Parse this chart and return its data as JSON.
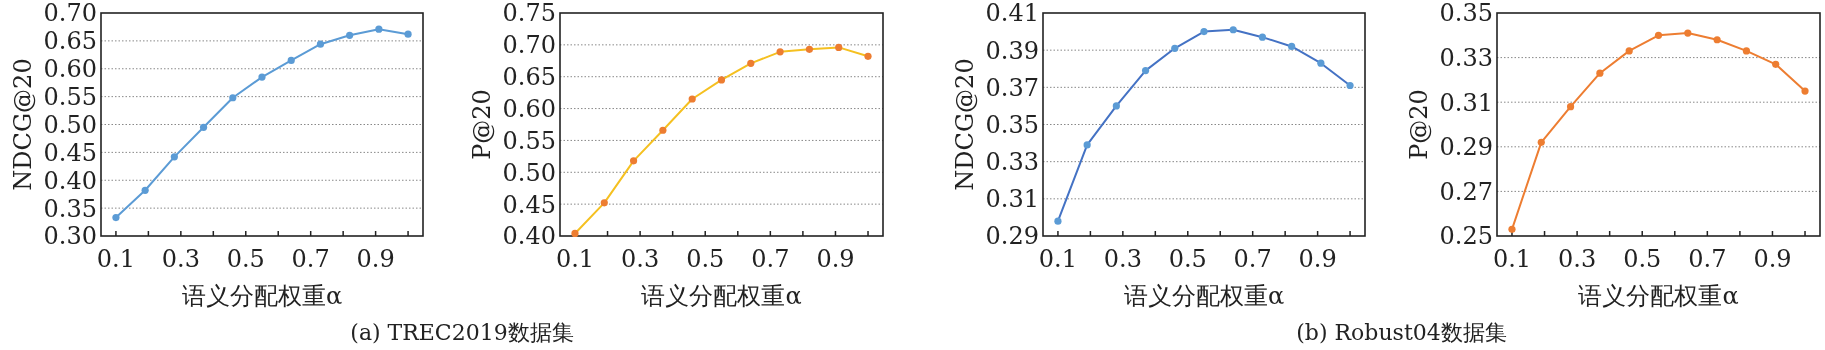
{
  "chart_data": [
    {
      "type": "line",
      "ylabel": "NDCG@20",
      "xlabel": "语义分配权重α",
      "annotations": [
        "(a) TREC2019数据集"
      ],
      "grid": "y",
      "marker": "circle",
      "x": [
        0.1,
        0.19,
        0.28,
        0.37,
        0.46,
        0.55,
        0.64,
        0.73,
        0.82,
        0.91,
        1.0
      ],
      "series": [
        {
          "color": "#5b9bd5",
          "values": [
            0.333,
            0.382,
            0.442,
            0.495,
            0.548,
            0.585,
            0.615,
            0.644,
            0.66,
            0.671,
            0.662
          ]
        }
      ],
      "xlim": [
        0.054,
        1.046
      ],
      "xticks": [
        {
          "value": 0.1,
          "label": "0.1"
        },
        {
          "value": 0.2,
          "label": null
        },
        {
          "value": 0.3,
          "label": "0.3"
        },
        {
          "value": 0.4,
          "label": null
        },
        {
          "value": 0.5,
          "label": "0.5"
        },
        {
          "value": 0.6,
          "label": null
        },
        {
          "value": 0.7,
          "label": "0.7"
        },
        {
          "value": 0.8,
          "label": null
        },
        {
          "value": 0.9,
          "label": "0.9"
        },
        {
          "value": 1.0,
          "label": null
        }
      ],
      "ylim": [
        0.3,
        0.7
      ],
      "yticks": [
        {
          "value": 0.3,
          "label": "0.30"
        },
        {
          "value": 0.35,
          "label": "0.35"
        },
        {
          "value": 0.4,
          "label": "0.40"
        },
        {
          "value": 0.45,
          "label": "0.45"
        },
        {
          "value": 0.5,
          "label": "0.50"
        },
        {
          "value": 0.55,
          "label": "0.55"
        },
        {
          "value": 0.6,
          "label": "0.60"
        },
        {
          "value": 0.65,
          "label": "0.65"
        },
        {
          "value": 0.7,
          "label": "0.70"
        }
      ]
    },
    {
      "type": "line",
      "ylabel": "P@20",
      "xlabel": "语义分配权重α",
      "grid": "y",
      "marker": "circle",
      "x": [
        0.1,
        0.19,
        0.28,
        0.37,
        0.46,
        0.55,
        0.64,
        0.73,
        0.82,
        0.91,
        1.0
      ],
      "series": [
        {
          "color": "#f5c020",
          "colors": [
            "#ed7d31",
            "#ed7d31",
            "#ed7d31",
            "#ed7d31",
            "#ed7d31",
            "#ed7d31",
            "#ed7d31",
            "#ed7d31",
            "#ed7d31",
            "#ed7d31",
            "#ed7d31"
          ],
          "values": [
            0.404,
            0.452,
            0.518,
            0.566,
            0.615,
            0.645,
            0.671,
            0.689,
            0.693,
            0.696,
            0.682
          ]
        }
      ],
      "xlim": [
        0.054,
        1.046
      ],
      "xticks": [
        {
          "value": 0.1,
          "label": "0.1"
        },
        {
          "value": 0.2,
          "label": null
        },
        {
          "value": 0.3,
          "label": "0.3"
        },
        {
          "value": 0.4,
          "label": null
        },
        {
          "value": 0.5,
          "label": "0.5"
        },
        {
          "value": 0.6,
          "label": null
        },
        {
          "value": 0.7,
          "label": "0.7"
        },
        {
          "value": 0.8,
          "label": null
        },
        {
          "value": 0.9,
          "label": "0.9"
        },
        {
          "value": 1.0,
          "label": null
        }
      ],
      "ylim": [
        0.4,
        0.75
      ],
      "yticks": [
        {
          "value": 0.4,
          "label": "0.40"
        },
        {
          "value": 0.45,
          "label": "0.45"
        },
        {
          "value": 0.5,
          "label": "0.50"
        },
        {
          "value": 0.55,
          "label": "0.55"
        },
        {
          "value": 0.6,
          "label": "0.60"
        },
        {
          "value": 0.65,
          "label": "0.65"
        },
        {
          "value": 0.7,
          "label": "0.70"
        },
        {
          "value": 0.75,
          "label": "0.75"
        }
      ]
    },
    {
      "type": "line",
      "ylabel": "NDCG@20",
      "xlabel": "语义分配权重α",
      "annotations": [
        "(b) Robust04数据集"
      ],
      "grid": "y",
      "marker": "circle",
      "x": [
        0.1,
        0.19,
        0.28,
        0.37,
        0.46,
        0.55,
        0.64,
        0.73,
        0.82,
        0.91,
        1.0
      ],
      "series": [
        {
          "color": "#4472c4",
          "colors": [
            "#5b9bd5",
            "#5b9bd5",
            "#5b9bd5",
            "#5b9bd5",
            "#5b9bd5",
            "#5b9bd5",
            "#5b9bd5",
            "#5b9bd5",
            "#5b9bd5",
            "#5b9bd5",
            "#5b9bd5"
          ],
          "values": [
            0.298,
            0.339,
            0.36,
            0.379,
            0.391,
            0.4,
            0.401,
            0.397,
            0.392,
            0.383,
            0.371
          ]
        }
      ],
      "xlim": [
        0.054,
        1.046
      ],
      "xticks": [
        {
          "value": 0.1,
          "label": "0.1"
        },
        {
          "value": 0.2,
          "label": null
        },
        {
          "value": 0.3,
          "label": "0.3"
        },
        {
          "value": 0.4,
          "label": null
        },
        {
          "value": 0.5,
          "label": "0.5"
        },
        {
          "value": 0.6,
          "label": null
        },
        {
          "value": 0.7,
          "label": "0.7"
        },
        {
          "value": 0.8,
          "label": null
        },
        {
          "value": 0.9,
          "label": "0.9"
        },
        {
          "value": 1.0,
          "label": null
        }
      ],
      "ylim": [
        0.29,
        0.41
      ],
      "yticks": [
        {
          "value": 0.29,
          "label": "0.29"
        },
        {
          "value": 0.31,
          "label": "0.31"
        },
        {
          "value": 0.33,
          "label": "0.33"
        },
        {
          "value": 0.35,
          "label": "0.35"
        },
        {
          "value": 0.37,
          "label": "0.37"
        },
        {
          "value": 0.39,
          "label": "0.39"
        },
        {
          "value": 0.41,
          "label": "0.41"
        }
      ]
    },
    {
      "type": "line",
      "ylabel": "P@20",
      "xlabel": "语义分配权重α",
      "grid": "y",
      "marker": "circle",
      "x": [
        0.1,
        0.19,
        0.28,
        0.37,
        0.46,
        0.55,
        0.64,
        0.73,
        0.82,
        0.91,
        1.0
      ],
      "series": [
        {
          "color": "#ed7d31",
          "values": [
            0.253,
            0.292,
            0.308,
            0.323,
            0.333,
            0.34,
            0.341,
            0.338,
            0.333,
            0.327,
            0.315
          ]
        }
      ],
      "xlim": [
        0.054,
        1.046
      ],
      "xticks": [
        {
          "value": 0.1,
          "label": "0.1"
        },
        {
          "value": 0.2,
          "label": null
        },
        {
          "value": 0.3,
          "label": "0.3"
        },
        {
          "value": 0.4,
          "label": null
        },
        {
          "value": 0.5,
          "label": "0.5"
        },
        {
          "value": 0.6,
          "label": null
        },
        {
          "value": 0.7,
          "label": "0.7"
        },
        {
          "value": 0.8,
          "label": null
        },
        {
          "value": 0.9,
          "label": "0.9"
        },
        {
          "value": 1.0,
          "label": null
        }
      ],
      "ylim": [
        0.25,
        0.35
      ],
      "yticks": [
        {
          "value": 0.25,
          "label": "0.25"
        },
        {
          "value": 0.27,
          "label": "0.27"
        },
        {
          "value": 0.29,
          "label": "0.29"
        },
        {
          "value": 0.31,
          "label": "0.31"
        },
        {
          "value": 0.33,
          "label": "0.33"
        },
        {
          "value": 0.35,
          "label": "0.35"
        }
      ]
    }
  ]
}
